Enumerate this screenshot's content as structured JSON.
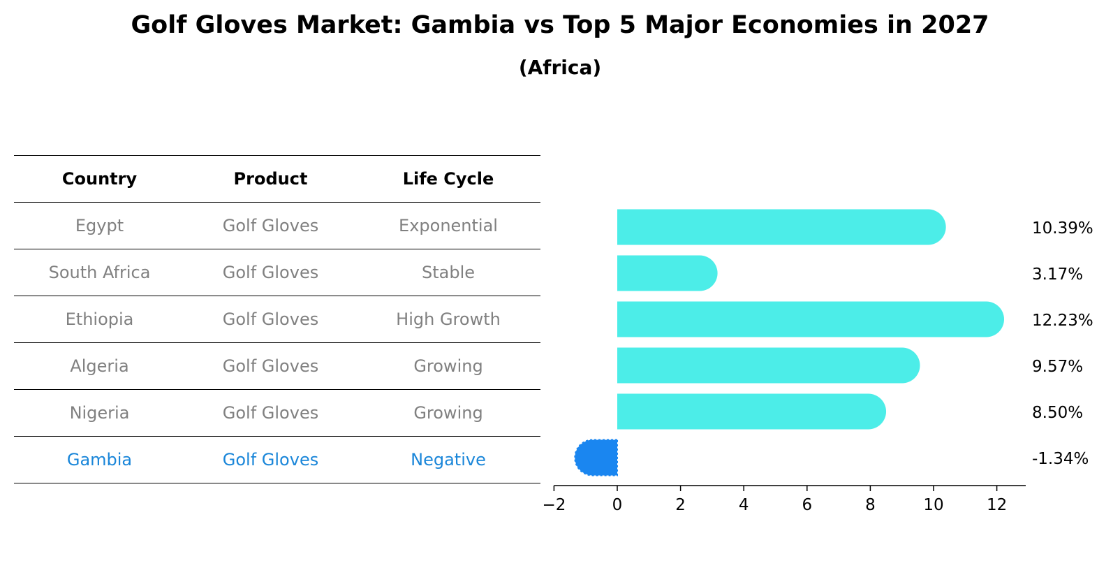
{
  "header": {
    "title": "Golf Gloves Market: Gambia vs Top 5 Major Economies in 2027",
    "subtitle": "(Africa)"
  },
  "table": {
    "columns": [
      "Country",
      "Product",
      "Life Cycle"
    ],
    "rows": [
      {
        "country": "Egypt",
        "product": "Golf Gloves",
        "life_cycle": "Exponential"
      },
      {
        "country": "South Africa",
        "product": "Golf Gloves",
        "life_cycle": "Stable"
      },
      {
        "country": "Ethiopia",
        "product": "Golf Gloves",
        "life_cycle": "High Growth"
      },
      {
        "country": "Algeria",
        "product": "Golf Gloves",
        "life_cycle": "Growing"
      },
      {
        "country": "Nigeria",
        "product": "Golf Gloves",
        "life_cycle": "Growing"
      },
      {
        "country": "Gambia",
        "product": "Golf Gloves",
        "life_cycle": "Negative"
      }
    ],
    "highlight_row": "Gambia",
    "colors": {
      "muted_text": "#808080",
      "highlight_text": "#1a86d9"
    }
  },
  "chart_data": {
    "type": "bar",
    "orientation": "horizontal",
    "categories": [
      "Egypt",
      "South Africa",
      "Ethiopia",
      "Algeria",
      "Nigeria",
      "Gambia"
    ],
    "values": [
      10.39,
      3.17,
      12.23,
      9.57,
      8.5,
      -1.34
    ],
    "value_labels": [
      "10.39%",
      "3.17%",
      "12.23%",
      "9.57%",
      "8.50%",
      "-1.34%"
    ],
    "xlim": [
      -2,
      13
    ],
    "xticks": [
      -2,
      0,
      2,
      4,
      6,
      8,
      10,
      12
    ],
    "xtick_labels": [
      "−2",
      "0",
      "2",
      "4",
      "6",
      "8",
      "10",
      "12"
    ],
    "xlabel": "",
    "ylabel": "",
    "grid": false,
    "colors": {
      "bar": "#4cede8",
      "highlight_bar": "#1a86f0",
      "axis": "#000000"
    }
  }
}
